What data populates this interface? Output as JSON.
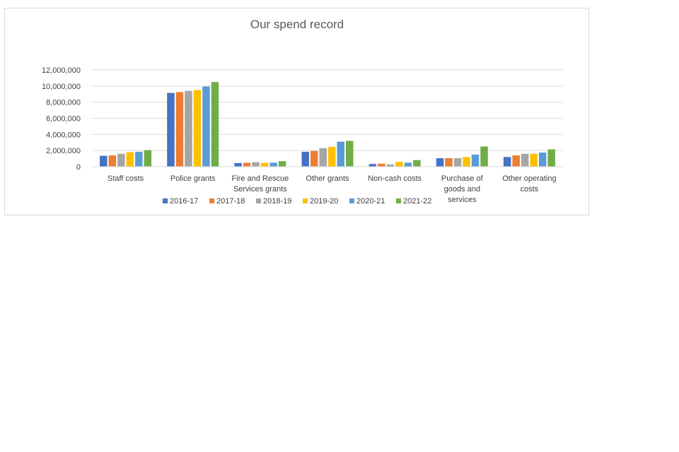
{
  "chart_data": {
    "type": "bar",
    "title": "Our spend record",
    "xlabel": "",
    "ylabel": "",
    "ylim": [
      0,
      12000000
    ],
    "yticks": [
      0,
      2000000,
      4000000,
      6000000,
      8000000,
      10000000,
      12000000
    ],
    "ytick_labels": [
      "0",
      "2,000,000",
      "4,000,000",
      "6,000,000",
      "8,000,000",
      "10,000,000",
      "12,000,000"
    ],
    "grid": true,
    "legend_position": "bottom",
    "categories": [
      [
        "Staff costs"
      ],
      [
        "Police grants"
      ],
      [
        "Fire and Rescue",
        "Services grants"
      ],
      [
        "Other grants"
      ],
      [
        "Non-cash costs"
      ],
      [
        "Purchase of",
        "goods and",
        "services"
      ],
      [
        "Other operating",
        "costs"
      ]
    ],
    "series": [
      {
        "name": "2016-17",
        "color": "#4472c4",
        "values": [
          1350000,
          9150000,
          450000,
          1850000,
          330000,
          1050000,
          1200000
        ]
      },
      {
        "name": "2017-18",
        "color": "#ed7d31",
        "values": [
          1400000,
          9250000,
          480000,
          1950000,
          380000,
          1050000,
          1400000
        ]
      },
      {
        "name": "2018-19",
        "color": "#a5a5a5",
        "values": [
          1600000,
          9400000,
          560000,
          2300000,
          280000,
          1050000,
          1600000
        ]
      },
      {
        "name": "2019-20",
        "color": "#ffc000",
        "values": [
          1800000,
          9500000,
          470000,
          2450000,
          600000,
          1200000,
          1600000
        ]
      },
      {
        "name": "2020-21",
        "color": "#5b9bd5",
        "values": [
          1850000,
          9950000,
          500000,
          3100000,
          500000,
          1500000,
          1750000
        ]
      },
      {
        "name": "2021-22",
        "color": "#70ad47",
        "values": [
          2050000,
          10500000,
          680000,
          3200000,
          820000,
          2500000,
          2150000
        ]
      }
    ]
  }
}
